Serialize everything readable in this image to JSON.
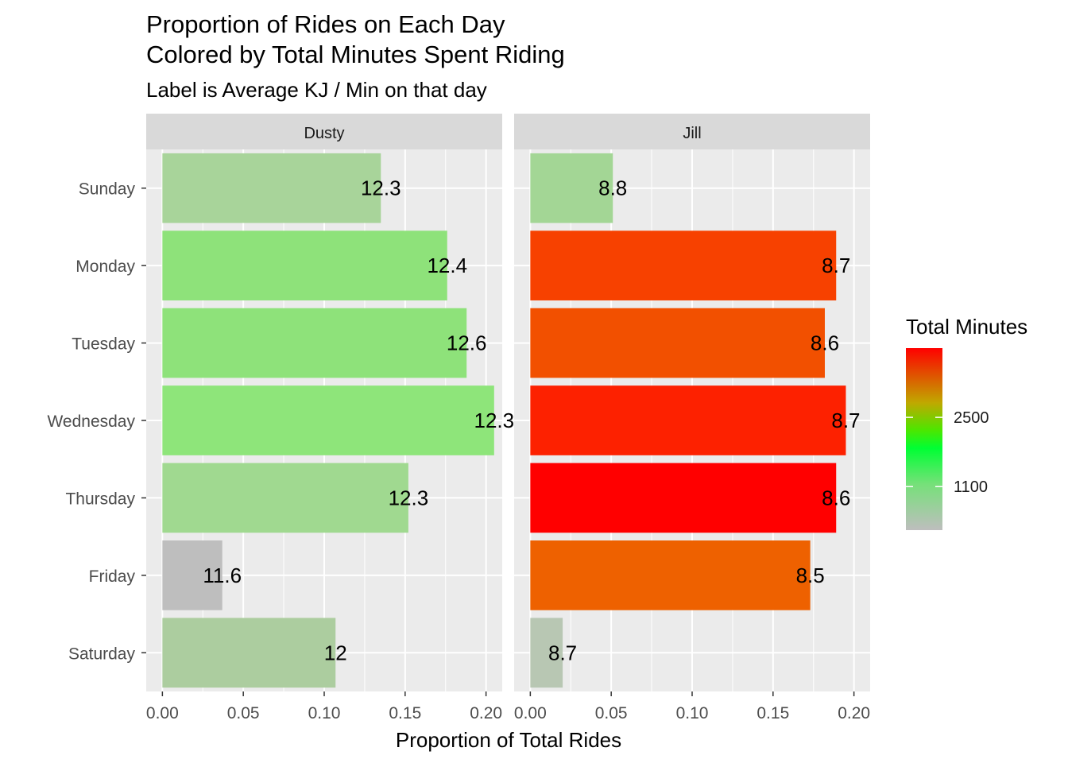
{
  "chart_data": {
    "type": "bar",
    "title": "Proportion of Rides on Each Day",
    "title_line2": "Colored by Total Minutes Spent Riding",
    "subtitle": "Label is Average KJ / Min on that day",
    "xlabel": "Proportion of Total Rides",
    "ylabel": "",
    "xlim": [
      -0.01,
      0.21
    ],
    "xticks": [
      0.0,
      0.05,
      0.1,
      0.15,
      0.2
    ],
    "xtick_labels": [
      "0.00",
      "0.05",
      "0.10",
      "0.15",
      "0.20"
    ],
    "categories": [
      "Sunday",
      "Monday",
      "Tuesday",
      "Wednesday",
      "Thursday",
      "Friday",
      "Saturday"
    ],
    "facets": [
      {
        "name": "Dusty",
        "values": [
          0.135,
          0.176,
          0.188,
          0.205,
          0.152,
          0.037,
          0.107
        ],
        "labels": [
          "12.3",
          "12.4",
          "12.6",
          "12.3",
          "12.3",
          "11.6",
          "12"
        ],
        "colors": [
          "#a8d49a",
          "#8ee27a",
          "#8ee27a",
          "#8ee57a",
          "#a0d990",
          "#bebebe",
          "#accd9f"
        ]
      },
      {
        "name": "Jill",
        "values": [
          0.051,
          0.189,
          0.182,
          0.195,
          0.189,
          0.173,
          0.02
        ],
        "labels": [
          "8.8",
          "8.7",
          "8.6",
          "8.7",
          "8.6",
          "8.5",
          "8.7"
        ],
        "colors": [
          "#a3d695",
          "#f74100",
          "#f25000",
          "#fd2100",
          "#ff0000",
          "#ee6100",
          "#b8c7b3"
        ]
      }
    ],
    "legend": {
      "title": "Total Minutes",
      "position": "right",
      "breaks": [
        1100,
        2500
      ],
      "break_labels": [
        "1100",
        "2500"
      ],
      "range": [
        220,
        3900
      ],
      "gradient": [
        "#bebebe",
        "#00ff00",
        "#ff0000"
      ]
    },
    "grid": true,
    "panel_background": "#ebebeb",
    "strip_background": "#d9d9d9"
  }
}
